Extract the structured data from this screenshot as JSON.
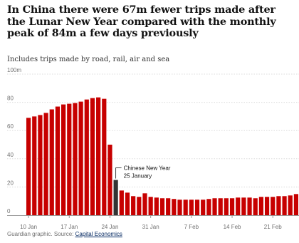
{
  "header": {
    "title": "In China there were 67m fewer trips made after the Lunar New Year compared with the monthly peak of 84m a few days previously",
    "subtitle": "Includes trips made by road, rail, air and sea"
  },
  "footer": {
    "prefix": "Guardian graphic. Source: ",
    "source_link": "Capital Economics"
  },
  "colors": {
    "bar": "#c70000",
    "highlight": "#333333",
    "grid": "#dcdcdc",
    "axis": "#999999"
  },
  "chart_data": {
    "type": "bar",
    "ylim": [
      0,
      100
    ],
    "yticks": [
      0,
      20,
      40,
      60,
      80,
      100
    ],
    "ytick_labels": [
      "0",
      "20",
      "40",
      "60",
      "80",
      "100m"
    ],
    "x": [
      "10 Jan",
      "11 Jan",
      "12 Jan",
      "13 Jan",
      "14 Jan",
      "15 Jan",
      "16 Jan",
      "17 Jan",
      "18 Jan",
      "19 Jan",
      "20 Jan",
      "21 Jan",
      "22 Jan",
      "23 Jan",
      "24 Jan",
      "25 Jan",
      "26 Jan",
      "27 Jan",
      "28 Jan",
      "29 Jan",
      "30 Jan",
      "31 Jan",
      "1 Feb",
      "2 Feb",
      "3 Feb",
      "4 Feb",
      "5 Feb",
      "6 Feb",
      "7 Feb",
      "8 Feb",
      "9 Feb",
      "10 Feb",
      "11 Feb",
      "12 Feb",
      "13 Feb",
      "14 Feb",
      "15 Feb",
      "16 Feb",
      "17 Feb",
      "18 Feb",
      "19 Feb",
      "20 Feb",
      "21 Feb",
      "22 Feb",
      "23 Feb",
      "24 Feb",
      "25 Feb"
    ],
    "values": [
      69,
      70,
      71,
      72.5,
      75,
      77,
      78.5,
      79,
      79.5,
      80.5,
      82,
      83,
      83.5,
      82.5,
      50,
      25,
      17.5,
      16,
      13.5,
      13,
      15.5,
      13,
      12.5,
      12,
      12,
      11.5,
      11,
      11,
      11,
      11,
      11,
      11.5,
      12,
      12,
      12,
      12,
      12.5,
      12.5,
      12.5,
      12,
      13,
      13,
      13,
      13.5,
      13.5,
      14,
      15
    ],
    "highlight": "25 Jan",
    "xtick_labels": [
      "10 Jan",
      "17 Jan",
      "24 Jan",
      "31 Jan",
      "7 Feb",
      "14 Feb",
      "21 Feb"
    ],
    "annotation": {
      "line1": "Chinese New Year",
      "line2": "25 January"
    }
  }
}
